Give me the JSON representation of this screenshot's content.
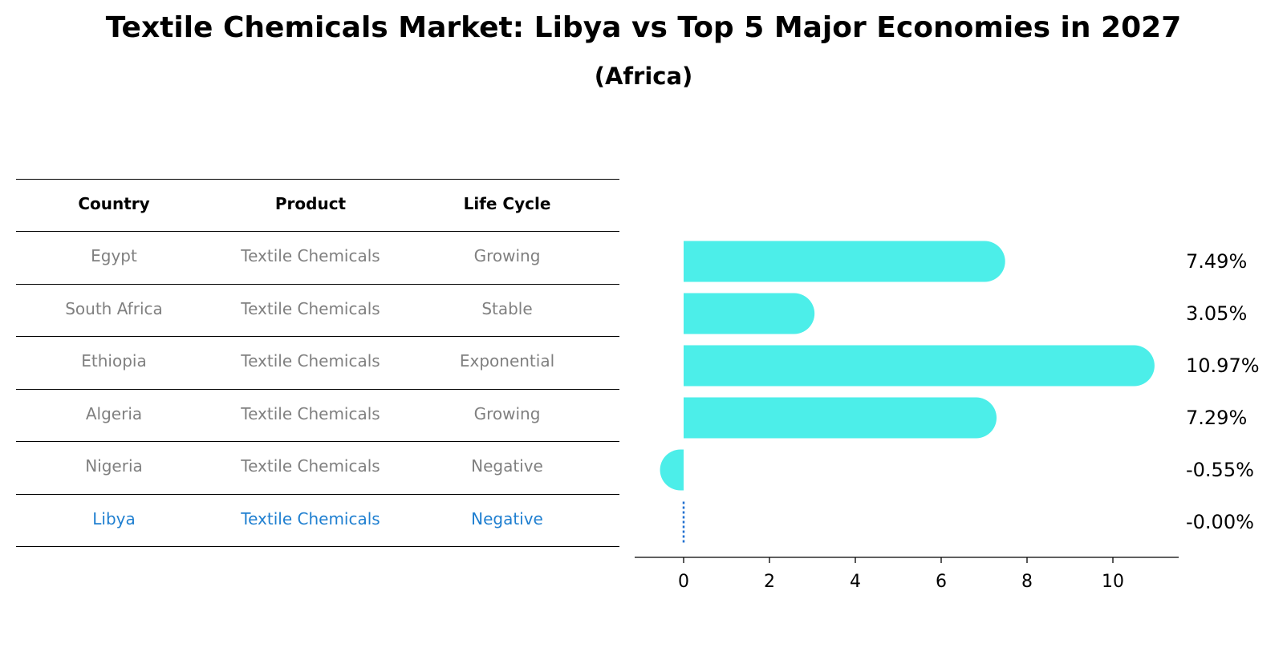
{
  "title": "Textile Chemicals Market: Libya vs Top 5 Major Economies in 2027",
  "subtitle": "(Africa)",
  "table": {
    "headers": [
      "Country",
      "Product",
      "Life Cycle"
    ],
    "rows": [
      {
        "country": "Egypt",
        "product": "Textile Chemicals",
        "life_cycle": "Growing"
      },
      {
        "country": "South Africa",
        "product": "Textile Chemicals",
        "life_cycle": "Stable"
      },
      {
        "country": "Ethiopia",
        "product": "Textile Chemicals",
        "life_cycle": "Exponential"
      },
      {
        "country": "Algeria",
        "product": "Textile Chemicals",
        "life_cycle": "Growing"
      },
      {
        "country": "Nigeria",
        "product": "Textile Chemicals",
        "life_cycle": "Negative"
      },
      {
        "country": "Libya",
        "product": "Textile Chemicals",
        "life_cycle": "Negative"
      }
    ],
    "highlight_row": 5
  },
  "colors": {
    "bar": "#4ceee9",
    "highlight_text": "#1f7fd0",
    "muted_text": "#808080",
    "zero_line": "#1f6fd0"
  },
  "chart_data": {
    "type": "bar",
    "orientation": "horizontal",
    "categories": [
      "Egypt",
      "South Africa",
      "Ethiopia",
      "Algeria",
      "Nigeria",
      "Libya"
    ],
    "values": [
      7.49,
      3.05,
      10.97,
      7.29,
      -0.55,
      -0.0
    ],
    "value_labels": [
      "7.49%",
      "3.05%",
      "10.97%",
      "7.29%",
      "-0.55%",
      "-0.00%"
    ],
    "xlim": [
      -1.1,
      11.6
    ],
    "xticks": [
      0,
      2,
      4,
      6,
      8,
      10
    ],
    "xlabel": "",
    "ylabel": "",
    "grid": false
  }
}
